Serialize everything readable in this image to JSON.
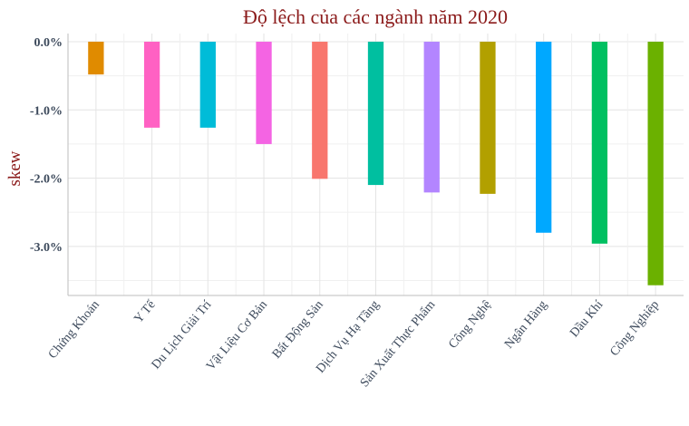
{
  "chart_data": {
    "type": "bar",
    "title": "Độ lệch của các ngành năm 2020",
    "xlabel": "",
    "ylabel": "skew",
    "ylim": [
      -3.7,
      0.0
    ],
    "yticks": [
      0.0,
      -1.0,
      -2.0,
      -3.0
    ],
    "ytick_labels": [
      "0.0%",
      "-1.0%",
      "-2.0%",
      "-3.0%"
    ],
    "grid": true,
    "legend": false,
    "categories": [
      "Chứng Khoán",
      "Y Tế",
      "Du Lịch Giải Trí",
      "Vật Liệu Cơ Bản",
      "Bất Động Sản",
      "Dịch Vụ Hạ Tầng",
      "Sản Xuất Thực Phẩm",
      "Công Nghệ",
      "Ngân Hàng",
      "Dầu Khí",
      "Công Nghiệp"
    ],
    "values": [
      -0.48,
      -1.26,
      -1.26,
      -1.5,
      -2.01,
      -2.1,
      -2.21,
      -2.23,
      -2.8,
      -2.96,
      -3.57
    ],
    "colors": [
      "#e08b00",
      "#ff61c3",
      "#00bcd8",
      "#f464e3",
      "#f8766d",
      "#00bfa0",
      "#b385ff",
      "#b2a000",
      "#00a8ff",
      "#00c061",
      "#6bb100"
    ]
  }
}
